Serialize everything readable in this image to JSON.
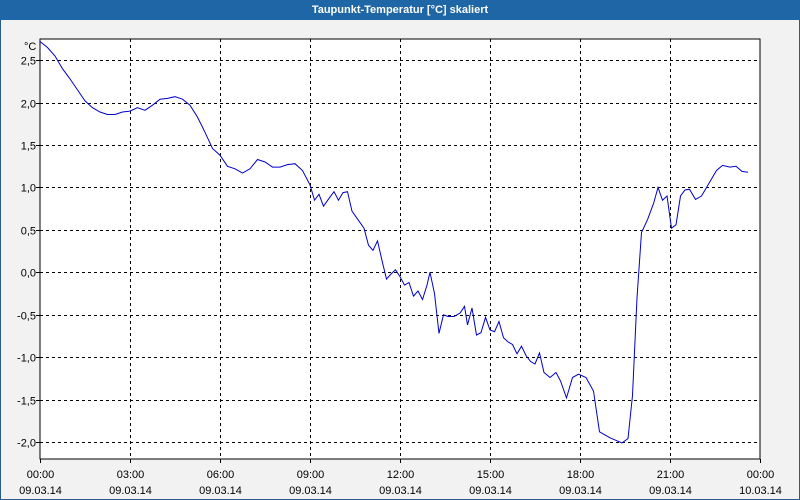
{
  "chart_data": {
    "type": "line",
    "title": "Taupunkt-Temperatur [°C] skaliert",
    "ylabel": "°C",
    "ylim": [
      -2.2,
      2.75
    ],
    "xlim_hours": [
      0,
      24
    ],
    "grid": true,
    "colors": {
      "line": "#0000cc",
      "grid": "#000000",
      "title_bg": "#1f66a6",
      "plot_bg": "#ffffff",
      "frame_bg": "#f2f2f2"
    },
    "y_ticks": [
      {
        "value": 2.5,
        "label": "2,5"
      },
      {
        "value": 2.0,
        "label": "2,0"
      },
      {
        "value": 1.5,
        "label": "1,5"
      },
      {
        "value": 1.0,
        "label": "1,0"
      },
      {
        "value": 0.5,
        "label": "0,5"
      },
      {
        "value": 0.0,
        "label": "0,0"
      },
      {
        "value": -0.5,
        "label": "-0,5"
      },
      {
        "value": -1.0,
        "label": "-1,0"
      },
      {
        "value": -1.5,
        "label": "-1,5"
      },
      {
        "value": -2.0,
        "label": "-2,0"
      }
    ],
    "x_ticks": [
      {
        "hour": 0,
        "time": "00:00",
        "date": "09.03.14"
      },
      {
        "hour": 3,
        "time": "03:00",
        "date": "09.03.14"
      },
      {
        "hour": 6,
        "time": "06:00",
        "date": "09.03.14"
      },
      {
        "hour": 9,
        "time": "09:00",
        "date": "09.03.14"
      },
      {
        "hour": 12,
        "time": "12:00",
        "date": "09.03.14"
      },
      {
        "hour": 15,
        "time": "15:00",
        "date": "09.03.14"
      },
      {
        "hour": 18,
        "time": "18:00",
        "date": "09.03.14"
      },
      {
        "hour": 21,
        "time": "21:00",
        "date": "09.03.14"
      },
      {
        "hour": 24,
        "time": "00:00",
        "date": "10.03.14"
      }
    ],
    "series": [
      {
        "points": [
          [
            0.0,
            2.72
          ],
          [
            0.25,
            2.65
          ],
          [
            0.5,
            2.55
          ],
          [
            0.75,
            2.4
          ],
          [
            1.0,
            2.28
          ],
          [
            1.25,
            2.15
          ],
          [
            1.5,
            2.02
          ],
          [
            1.75,
            1.94
          ],
          [
            2.0,
            1.89
          ],
          [
            2.25,
            1.86
          ],
          [
            2.5,
            1.86
          ],
          [
            2.75,
            1.89
          ],
          [
            3.0,
            1.9
          ],
          [
            3.25,
            1.94
          ],
          [
            3.5,
            1.91
          ],
          [
            3.75,
            1.97
          ],
          [
            4.0,
            2.04
          ],
          [
            4.25,
            2.05
          ],
          [
            4.5,
            2.07
          ],
          [
            4.75,
            2.04
          ],
          [
            5.0,
            1.97
          ],
          [
            5.25,
            1.83
          ],
          [
            5.5,
            1.65
          ],
          [
            5.75,
            1.46
          ],
          [
            6.0,
            1.38
          ],
          [
            6.25,
            1.25
          ],
          [
            6.5,
            1.22
          ],
          [
            6.75,
            1.17
          ],
          [
            7.0,
            1.22
          ],
          [
            7.25,
            1.33
          ],
          [
            7.5,
            1.3
          ],
          [
            7.75,
            1.24
          ],
          [
            8.0,
            1.24
          ],
          [
            8.25,
            1.27
          ],
          [
            8.5,
            1.28
          ],
          [
            8.75,
            1.2
          ],
          [
            9.0,
            1.03
          ],
          [
            9.15,
            0.85
          ],
          [
            9.3,
            0.92
          ],
          [
            9.45,
            0.78
          ],
          [
            9.65,
            0.88
          ],
          [
            9.8,
            0.95
          ],
          [
            9.95,
            0.85
          ],
          [
            10.1,
            0.94
          ],
          [
            10.25,
            0.95
          ],
          [
            10.4,
            0.72
          ],
          [
            10.6,
            0.62
          ],
          [
            10.8,
            0.52
          ],
          [
            10.95,
            0.32
          ],
          [
            11.1,
            0.26
          ],
          [
            11.25,
            0.37
          ],
          [
            11.4,
            0.14
          ],
          [
            11.55,
            -0.08
          ],
          [
            11.7,
            -0.02
          ],
          [
            11.85,
            0.03
          ],
          [
            12.0,
            -0.05
          ],
          [
            12.15,
            -0.15
          ],
          [
            12.3,
            -0.12
          ],
          [
            12.45,
            -0.28
          ],
          [
            12.6,
            -0.22
          ],
          [
            12.75,
            -0.32
          ],
          [
            12.9,
            -0.15
          ],
          [
            13.0,
            0.0
          ],
          [
            13.15,
            -0.25
          ],
          [
            13.3,
            -0.72
          ],
          [
            13.45,
            -0.5
          ],
          [
            13.6,
            -0.52
          ],
          [
            13.8,
            -0.52
          ],
          [
            14.0,
            -0.48
          ],
          [
            14.15,
            -0.4
          ],
          [
            14.25,
            -0.62
          ],
          [
            14.4,
            -0.42
          ],
          [
            14.55,
            -0.74
          ],
          [
            14.7,
            -0.71
          ],
          [
            14.85,
            -0.53
          ],
          [
            15.0,
            -0.68
          ],
          [
            15.15,
            -0.7
          ],
          [
            15.3,
            -0.58
          ],
          [
            15.45,
            -0.77
          ],
          [
            15.6,
            -0.82
          ],
          [
            15.75,
            -0.85
          ],
          [
            15.9,
            -0.96
          ],
          [
            16.05,
            -0.87
          ],
          [
            16.2,
            -0.98
          ],
          [
            16.35,
            -1.05
          ],
          [
            16.5,
            -1.08
          ],
          [
            16.65,
            -0.95
          ],
          [
            16.8,
            -1.18
          ],
          [
            17.0,
            -1.24
          ],
          [
            17.2,
            -1.18
          ],
          [
            17.35,
            -1.28
          ],
          [
            17.55,
            -1.48
          ],
          [
            17.75,
            -1.24
          ],
          [
            17.95,
            -1.2
          ],
          [
            18.2,
            -1.24
          ],
          [
            18.45,
            -1.4
          ],
          [
            18.65,
            -1.88
          ],
          [
            19.0,
            -1.95
          ],
          [
            19.4,
            -2.01
          ],
          [
            19.6,
            -1.96
          ],
          [
            19.75,
            -1.45
          ],
          [
            19.9,
            -0.3
          ],
          [
            20.05,
            0.47
          ],
          [
            20.25,
            0.62
          ],
          [
            20.45,
            0.81
          ],
          [
            20.6,
            1.0
          ],
          [
            20.75,
            0.85
          ],
          [
            20.9,
            0.9
          ],
          [
            21.05,
            0.52
          ],
          [
            21.2,
            0.56
          ],
          [
            21.35,
            0.9
          ],
          [
            21.5,
            0.97
          ],
          [
            21.65,
            0.98
          ],
          [
            21.85,
            0.86
          ],
          [
            22.05,
            0.9
          ],
          [
            22.3,
            1.05
          ],
          [
            22.55,
            1.2
          ],
          [
            22.75,
            1.26
          ],
          [
            23.0,
            1.24
          ],
          [
            23.2,
            1.25
          ],
          [
            23.4,
            1.19
          ],
          [
            23.6,
            1.18
          ]
        ]
      }
    ]
  }
}
